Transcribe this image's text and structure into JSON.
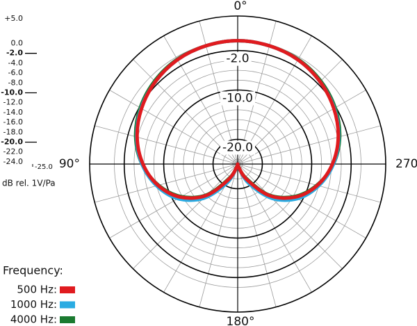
{
  "chart_data": {
    "type": "polar",
    "radial_axis_label": "dB rel. 1V/Pa",
    "legend_title": "Frequency:",
    "rlim": [
      -25,
      5
    ],
    "rticks": [
      {
        "value": 5,
        "label": "+5.0"
      },
      {
        "value": 0,
        "label": "0.0"
      },
      {
        "value": -2,
        "label": "-2.0",
        "major": true
      },
      {
        "value": -4,
        "label": "-4.0"
      },
      {
        "value": -6,
        "label": "-6.0"
      },
      {
        "value": -8,
        "label": "-8.0"
      },
      {
        "value": -10,
        "label": "-10.0",
        "major": true
      },
      {
        "value": -12,
        "label": "-12.0"
      },
      {
        "value": -14,
        "label": "-14.0"
      },
      {
        "value": -16,
        "label": "-16.0"
      },
      {
        "value": -18,
        "label": "-18.0"
      },
      {
        "value": -20,
        "label": "-20.0",
        "major": true
      },
      {
        "value": -22,
        "label": "-22.0"
      },
      {
        "value": -24,
        "label": "-24.0"
      },
      {
        "value": -25,
        "label": "-25.0"
      }
    ],
    "thetaticks": [
      {
        "value": 0,
        "label": "0°"
      },
      {
        "value": 90,
        "label": "90°"
      },
      {
        "value": 180,
        "label": "180°"
      },
      {
        "value": 270,
        "label": "270°"
      }
    ],
    "theta_grid_step": 15,
    "theta": [
      0,
      15,
      30,
      45,
      60,
      75,
      90,
      105,
      120,
      135,
      150,
      165,
      180,
      195,
      210,
      225,
      240,
      255,
      270,
      285,
      300,
      315,
      330,
      345
    ],
    "series": [
      {
        "name": "500 Hz:",
        "color": "#e01b1f",
        "values": [
          0,
          -0.2,
          -0.6,
          -1.4,
          -2.5,
          -3.9,
          -5.8,
          -8.3,
          -11.6,
          -16,
          -21.5,
          -24.5,
          -25,
          -24.5,
          -21.5,
          -16,
          -11.6,
          -8.3,
          -5.8,
          -3.9,
          -2.5,
          -1.4,
          -0.6,
          -0.2
        ]
      },
      {
        "name": "1000 Hz:",
        "color": "#29abe2",
        "values": [
          0,
          -0.2,
          -0.6,
          -1.4,
          -2.4,
          -3.8,
          -5.6,
          -8,
          -11,
          -15.2,
          -20.5,
          -24.3,
          -25,
          -24.3,
          -20.5,
          -15.2,
          -11,
          -8,
          -5.6,
          -3.8,
          -2.4,
          -1.4,
          -0.6,
          -0.2
        ]
      },
      {
        "name": "4000 Hz:",
        "color": "#1b7a30",
        "values": [
          0,
          -0.2,
          -0.5,
          -1.2,
          -2.2,
          -3.6,
          -5.6,
          -8.4,
          -11.8,
          -16.2,
          -21.8,
          -24.6,
          -25,
          -24.6,
          -21.8,
          -16.2,
          -11.8,
          -8.4,
          -5.6,
          -3.6,
          -2.2,
          -1.2,
          -0.5,
          -0.2
        ]
      }
    ]
  }
}
